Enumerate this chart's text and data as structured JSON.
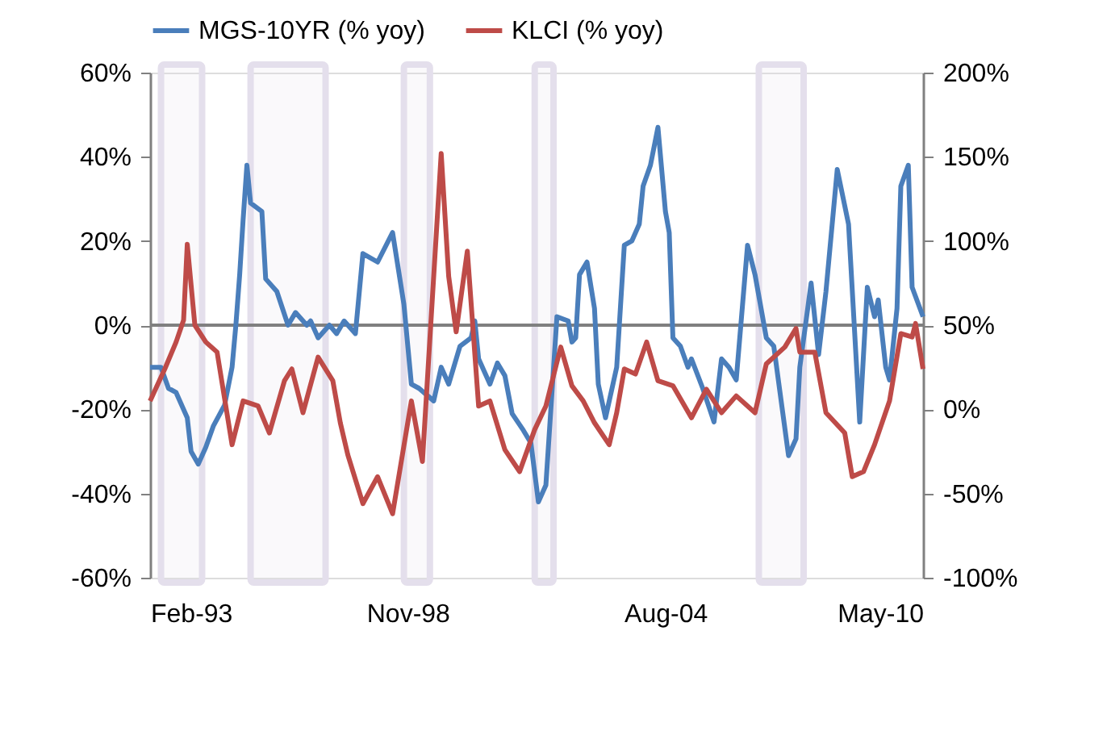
{
  "chart_data": {
    "type": "line",
    "legend": "top",
    "grid": false,
    "line_style": "solid",
    "marker": "none",
    "xlim": [
      "1993-02",
      "2010-05"
    ],
    "xticks": [
      {
        "value": "1993-02",
        "label": "Feb-93"
      },
      {
        "value": "1998-11",
        "label": "Nov-98"
      },
      {
        "value": "2004-08",
        "label": "Aug-04"
      },
      {
        "value": "2010-05",
        "label": "May-10"
      }
    ],
    "ylim": [
      -60,
      60
    ],
    "yticks": [
      {
        "value": -60,
        "label": "-60%"
      },
      {
        "value": -40,
        "label": "-40%"
      },
      {
        "value": -20,
        "label": "-20%"
      },
      {
        "value": 0,
        "label": "0%"
      },
      {
        "value": 20,
        "label": "20%"
      },
      {
        "value": 40,
        "label": "40%"
      },
      {
        "value": 60,
        "label": "60%"
      }
    ],
    "y2lim": [
      -100,
      200
    ],
    "y2ticks": [
      {
        "value": -100,
        "label": "-100%"
      },
      {
        "value": -50,
        "label": "-50%"
      },
      {
        "value": 0,
        "label": "0%"
      },
      {
        "value": 50,
        "label": "50%"
      },
      {
        "value": 100,
        "label": "100%"
      },
      {
        "value": 150,
        "label": "150%"
      },
      {
        "value": 200,
        "label": "200%"
      }
    ],
    "ref_lines": [
      {
        "axis": "y",
        "value": 0,
        "color": "#808080"
      }
    ],
    "bands": [
      {
        "axis": "x",
        "from": "1993-05",
        "to": "1994-04",
        "color": "#e4dfec"
      },
      {
        "axis": "x",
        "from": "1995-05",
        "to": "1997-01",
        "color": "#e4dfec"
      },
      {
        "axis": "x",
        "from": "1998-10",
        "to": "1999-05",
        "color": "#e4dfec"
      },
      {
        "axis": "x",
        "from": "2001-09",
        "to": "2002-02",
        "color": "#e4dfec"
      },
      {
        "axis": "x",
        "from": "2006-09",
        "to": "2007-09",
        "color": "#e4dfec"
      }
    ],
    "series": [
      {
        "name": "MGS-10YR (% yoy)",
        "color": "#4a7ebb",
        "x": [
          "1993-02",
          "1993-05",
          "1993-07",
          "1993-09",
          "1993-12",
          "1994-01",
          "1994-03",
          "1994-05",
          "1994-07",
          "1994-10",
          "1994-12",
          "1995-01",
          "1995-02",
          "1995-03",
          "1995-04",
          "1995-05",
          "1995-08",
          "1995-09",
          "1995-12",
          "1996-03",
          "1996-05",
          "1996-08",
          "1996-09",
          "1996-11",
          "1997-02",
          "1997-04",
          "1997-06",
          "1997-09",
          "1997-11",
          "1998-03",
          "1998-07",
          "1998-10",
          "1998-12",
          "1999-02",
          "1999-06",
          "1999-08",
          "1999-10",
          "2000-01",
          "2000-04",
          "2000-05",
          "2000-06",
          "2000-09",
          "2000-11",
          "2001-01",
          "2001-03",
          "2001-06",
          "2001-08",
          "2001-10",
          "2001-12",
          "2002-03",
          "2002-06",
          "2002-07",
          "2002-08",
          "2002-09",
          "2002-11",
          "2003-01",
          "2003-02",
          "2003-04",
          "2003-07",
          "2003-09",
          "2003-11",
          "2004-01",
          "2004-02",
          "2004-04",
          "2004-06",
          "2004-08",
          "2004-09",
          "2004-10",
          "2004-12",
          "2005-02",
          "2005-03",
          "2005-06",
          "2005-09",
          "2005-11",
          "2006-01",
          "2006-03",
          "2006-06",
          "2006-08",
          "2006-11",
          "2007-01",
          "2007-05",
          "2007-07",
          "2007-08",
          "2007-11",
          "2008-01",
          "2008-03",
          "2008-06",
          "2008-09",
          "2008-12",
          "2009-02",
          "2009-04",
          "2009-05",
          "2009-07",
          "2009-08",
          "2009-10",
          "2009-11",
          "2010-01",
          "2010-02",
          "2010-05"
        ],
        "values": [
          -10,
          -10,
          -15,
          -16,
          -22,
          -30,
          -33,
          -29,
          -24,
          -19,
          -10,
          0,
          12,
          25,
          38,
          29,
          27,
          11,
          8,
          0,
          3,
          0,
          1,
          -3,
          0,
          -2,
          1,
          -2,
          17,
          15,
          22,
          5,
          -14,
          -15,
          -18,
          -10,
          -14,
          -5,
          -3,
          1,
          -8,
          -14,
          -9,
          -12,
          -21,
          -25,
          -28,
          -42,
          -38,
          2,
          1,
          -4,
          -3,
          12,
          15,
          4,
          -14,
          -22,
          -10,
          19,
          20,
          24,
          33,
          38,
          47,
          27,
          22,
          -3,
          -5,
          -10,
          -8,
          -15,
          -23,
          -8,
          -10,
          -13,
          19,
          12,
          -3,
          -5,
          -31,
          -27,
          -10,
          10,
          -7,
          8,
          37,
          24,
          -23,
          9,
          2,
          6,
          -10,
          -13,
          4,
          33,
          38,
          9,
          2
        ]
      },
      {
        "name": "KLCI (% yoy)",
        "color": "#be4b48",
        "axis": "y2",
        "x": [
          "1993-02",
          "1993-06",
          "1993-09",
          "1993-11",
          "1993-12",
          "1994-02",
          "1994-05",
          "1994-08",
          "1994-12",
          "1995-03",
          "1995-07",
          "1995-10",
          "1996-02",
          "1996-04",
          "1996-07",
          "1996-11",
          "1997-03",
          "1997-05",
          "1997-07",
          "1997-11",
          "1998-03",
          "1998-07",
          "1998-12",
          "1999-03",
          "1999-08",
          "1999-10",
          "1999-12",
          "2000-03",
          "2000-06",
          "2000-09",
          "2001-01",
          "2001-05",
          "2001-09",
          "2001-12",
          "2002-04",
          "2002-07",
          "2002-10",
          "2003-01",
          "2003-05",
          "2003-07",
          "2003-09",
          "2003-12",
          "2004-03",
          "2004-06",
          "2004-10",
          "2005-03",
          "2005-07",
          "2005-11",
          "2006-03",
          "2006-08",
          "2006-11",
          "2007-04",
          "2007-07",
          "2007-08",
          "2007-12",
          "2008-03",
          "2008-08",
          "2008-10",
          "2009-01",
          "2009-04",
          "2009-08",
          "2009-11",
          "2010-02",
          "2010-03",
          "2010-05"
        ],
        "values": [
          5,
          24,
          40,
          53,
          98,
          50,
          40,
          34,
          -21,
          5,
          2,
          -14,
          17,
          24,
          -2,
          31,
          17,
          -8,
          -27,
          -56,
          -40,
          -62,
          5,
          -31,
          152,
          79,
          46,
          94,
          2,
          5,
          -24,
          -37,
          -12,
          2,
          37,
          14,
          5,
          -8,
          -21,
          -2,
          24,
          21,
          40,
          17,
          14,
          -5,
          12,
          -2,
          8,
          -2,
          27,
          37,
          48,
          34,
          34,
          -2,
          -14,
          -40,
          -37,
          -21,
          5,
          45,
          43,
          51,
          24
        ]
      }
    ]
  }
}
